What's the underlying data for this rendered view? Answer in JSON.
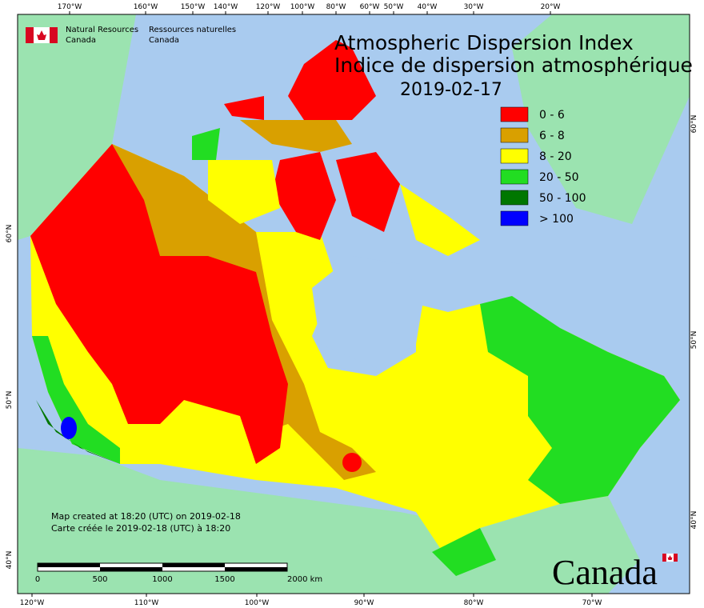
{
  "agency": {
    "en": [
      "Natural Resources",
      "Canada"
    ],
    "fr": [
      "Ressources naturelles",
      "Canada"
    ]
  },
  "title": [
    "Atmospheric Dispersion Index",
    "Indice de dispersion atmosphérique",
    "2019-02-17"
  ],
  "legend": [
    {
      "label": "0 - 6",
      "color": "#ff0000"
    },
    {
      "label": "6 - 8",
      "color": "#d9a000"
    },
    {
      "label": "8 - 20",
      "color": "#ffff00"
    },
    {
      "label": "20 - 50",
      "color": "#22dd22"
    },
    {
      "label": "50 - 100",
      "color": "#007700"
    },
    {
      "label": "> 100",
      "color": "#0000ff"
    }
  ],
  "graticule": {
    "top": [
      "170°W",
      "160°W",
      "150°W",
      "140°W",
      "120°W",
      "100°W",
      "80°W",
      "60°W",
      "50°W",
      "40°W",
      "30°W",
      "20°W"
    ],
    "bottom": [
      "120°W",
      "110°W",
      "100°W",
      "90°W",
      "80°W",
      "70°W"
    ],
    "left": [
      "60°N",
      "50°N",
      "40°N"
    ],
    "right": [
      "60°N",
      "50°N",
      "40°N"
    ]
  },
  "credits": [
    "Map created at 18:20 (UTC) on 2019-02-18",
    "Carte créée le 2019-02-18 (UTC) à 18:20"
  ],
  "scale_bar": [
    "0",
    "500",
    "1000",
    "1500",
    "2000 km"
  ],
  "wordmark": "Canada"
}
